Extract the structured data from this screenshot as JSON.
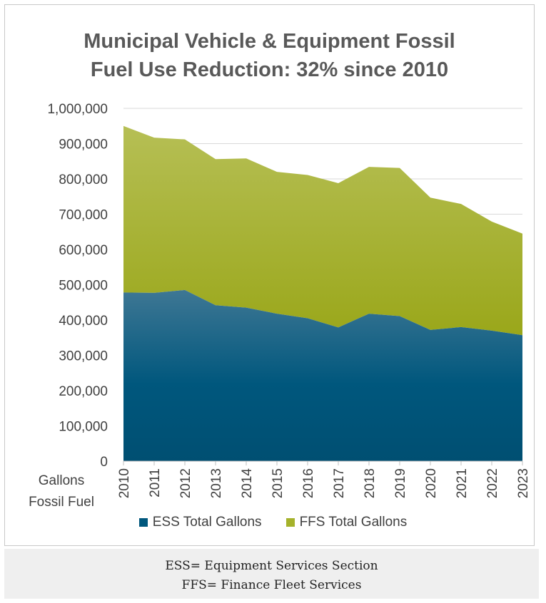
{
  "title_line1": "Municipal Vehicle & Equipment Fossil",
  "title_line2": "Fuel Use Reduction: 32% since 2010",
  "colors": {
    "ess": "#00577d",
    "ffs": "#a5b22b",
    "axis_text": "#404040",
    "grid": "#d9d9d9"
  },
  "footer": {
    "line1": "ESS= Equipment Services Section",
    "line2": "FFS= Finance Fleet Services"
  },
  "chart_data": {
    "type": "area",
    "stacked": true,
    "title": "Municipal Vehicle & Equipment Fossil Fuel Use Reduction: 32% since 2010",
    "xlabel": "Gallons Fossil Fuel",
    "xlabel_lines": [
      "Gallons",
      "Fossil Fuel"
    ],
    "ylabel": "",
    "categories": [
      "2010",
      "2011",
      "2012",
      "2013",
      "2014",
      "2015",
      "2016",
      "2017",
      "2018",
      "2019",
      "2020",
      "2021",
      "2022",
      "2023"
    ],
    "series": [
      {
        "name": "ESS Total Gallons",
        "values": [
          478000,
          477000,
          485000,
          442000,
          435000,
          418000,
          405000,
          379000,
          418000,
          411000,
          372000,
          380000,
          370000,
          357000
        ]
      },
      {
        "name": "FFS Total Gallons",
        "values": [
          472000,
          440000,
          427000,
          414000,
          423000,
          402000,
          406000,
          409000,
          416000,
          420000,
          375000,
          349000,
          309000,
          288000
        ]
      }
    ],
    "ylim": [
      0,
      1000000
    ],
    "y_ticks": [
      "0",
      "100,000",
      "200,000",
      "300,000",
      "400,000",
      "500,000",
      "600,000",
      "700,000",
      "800,000",
      "900,000",
      "1,000,000"
    ],
    "grid": true,
    "legend_position": "bottom"
  }
}
